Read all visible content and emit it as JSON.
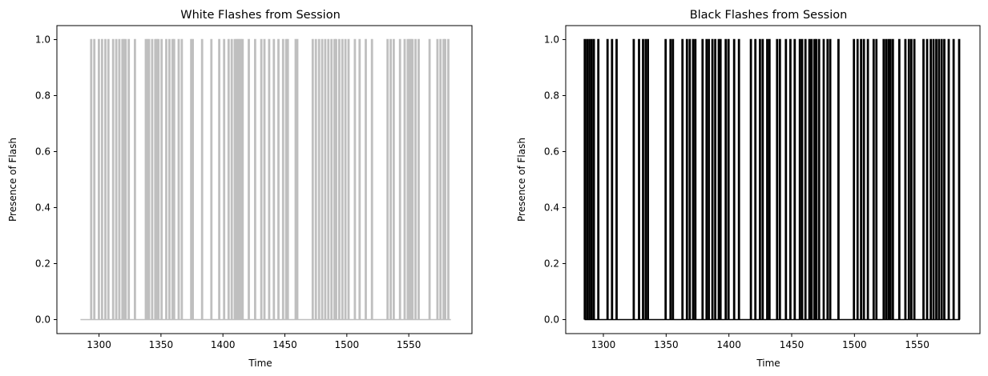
{
  "chart_data": [
    {
      "type": "line",
      "title": "White Flashes from Session",
      "xlabel": "Time",
      "ylabel": "Presence of Flash",
      "xlim": [
        1266,
        1601
      ],
      "ylim": [
        -0.05,
        1.05
      ],
      "x_ticks": [
        1300,
        1350,
        1400,
        1450,
        1500,
        1550
      ],
      "y_ticks": [
        0.0,
        0.2,
        0.4,
        0.6,
        0.8,
        1.0
      ],
      "x_tick_labels": [
        "1300",
        "1350",
        "1400",
        "1450",
        "1500",
        "1550"
      ],
      "y_tick_labels": [
        "0.0",
        "0.2",
        "0.4",
        "0.6",
        "0.8",
        "1.0"
      ],
      "grid": false,
      "legend": "none",
      "series": [
        {
          "color": "#bfbfbf",
          "x_range": [
            1285,
            1584
          ],
          "baseline": 0,
          "flash_value": 1,
          "flash_times": [
            1293.7,
            1296.2,
            1299.9,
            1302.5,
            1305.1,
            1307.6,
            1311.4,
            1313.9,
            1316.4,
            1318.9,
            1320.2,
            1321.5,
            1324.0,
            1329.0,
            1337.8,
            1339.1,
            1340.4,
            1342.9,
            1345.4,
            1346.7,
            1348.0,
            1350.5,
            1354.3,
            1356.8,
            1359.3,
            1360.6,
            1364.3,
            1366.8,
            1374.4,
            1375.7,
            1383.2,
            1390.7,
            1397.0,
            1401.0,
            1404.6,
            1407.1,
            1409.6,
            1410.9,
            1412.2,
            1413.4,
            1414.7,
            1415.9,
            1420.9,
            1426.0,
            1431.0,
            1433.5,
            1437.3,
            1441.1,
            1444.8,
            1448.6,
            1451.1,
            1452.4,
            1458.7,
            1460.0,
            1472.5,
            1475.0,
            1477.6,
            1480.1,
            1482.6,
            1485.1,
            1487.6,
            1490.1,
            1491.4,
            1493.9,
            1496.4,
            1498.9,
            1501.4,
            1506.5,
            1510.3,
            1515.3,
            1520.3,
            1532.9,
            1535.4,
            1537.9,
            1542.9,
            1546.7,
            1549.2,
            1550.5,
            1551.7,
            1553.0,
            1555.5,
            1558.0,
            1566.8,
            1573.1,
            1575.6,
            1578.1,
            1579.4,
            1581.9
          ]
        }
      ]
    },
    {
      "type": "line",
      "title": "Black Flashes from Session",
      "xlabel": "Time",
      "ylabel": "Presence of Flash",
      "xlim": [
        1270,
        1600
      ],
      "ylim": [
        -0.05,
        1.05
      ],
      "x_ticks": [
        1300,
        1350,
        1400,
        1450,
        1500,
        1550
      ],
      "y_ticks": [
        0.0,
        0.2,
        0.4,
        0.6,
        0.8,
        1.0
      ],
      "x_tick_labels": [
        "1300",
        "1350",
        "1400",
        "1450",
        "1500",
        "1550"
      ],
      "y_tick_labels": [
        "0.0",
        "0.2",
        "0.4",
        "0.6",
        "0.8",
        "1.0"
      ],
      "grid": false,
      "legend": "none",
      "series": [
        {
          "color": "#000000",
          "x_range": [
            1285,
            1584
          ],
          "baseline": 0,
          "flash_value": 1,
          "flash_times": [
            1285.2,
            1287.0,
            1288.8,
            1290.6,
            1292.4,
            1296.0,
            1303.3,
            1306.9,
            1310.5,
            1324.2,
            1328.4,
            1331.6,
            1333.7,
            1335.5,
            1349.6,
            1353.5,
            1355.4,
            1363.0,
            1366.6,
            1368.8,
            1371.5,
            1373.3,
            1379.0,
            1382.2,
            1384.0,
            1386.9,
            1389.1,
            1391.9,
            1393.3,
            1397.5,
            1399.7,
            1404.2,
            1408.0,
            1417.5,
            1421.1,
            1424.7,
            1426.9,
            1430.5,
            1432.3,
            1438.4,
            1440.6,
            1445.4,
            1449.0,
            1452.4,
            1456.5,
            1458.3,
            1461.0,
            1464.1,
            1465.9,
            1468.2,
            1469.6,
            1471.8,
            1475.5,
            1478.6,
            1480.7,
            1487.3,
            1499.6,
            1502.5,
            1505.3,
            1507.5,
            1510.7,
            1515.3,
            1517.5,
            1523.3,
            1525.2,
            1527.1,
            1528.7,
            1530.6,
            1535.7,
            1540.6,
            1543.4,
            1545.3,
            1547.7,
            1555.0,
            1557.9,
            1560.8,
            1563.0,
            1565.2,
            1567.3,
            1569.5,
            1571.6,
            1575.1,
            1579.0,
            1583.4
          ]
        }
      ]
    }
  ]
}
